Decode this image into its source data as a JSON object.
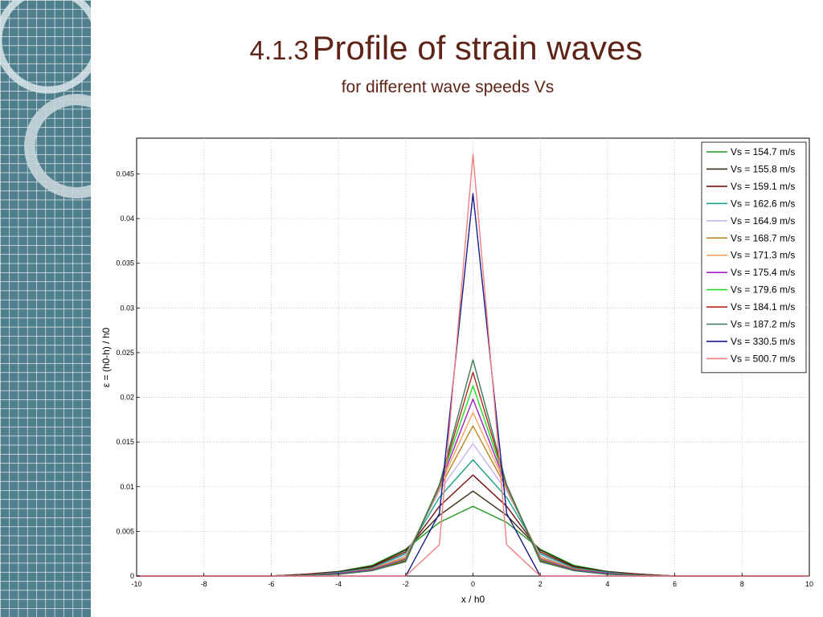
{
  "slide": {
    "title_prefix": "4.1.3",
    "title_main": "Profile of strain waves",
    "subtitle": "for different wave speeds Vs"
  },
  "theme": {
    "title_color": "#5e2418",
    "panel_color": "#4f7e8c",
    "panel_grid_color": "#ffffff"
  },
  "chart_data": {
    "type": "line",
    "xlabel": "x / h0",
    "ylabel": "ε = (h0-h) / h0",
    "xlim": [
      -10,
      10
    ],
    "ylim": [
      0,
      0.049
    ],
    "xticks": [
      -10,
      -8,
      -6,
      -4,
      -2,
      0,
      2,
      4,
      6,
      8,
      10
    ],
    "yticks": [
      0,
      0.005,
      0.01,
      0.015,
      0.02,
      0.025,
      0.03,
      0.035,
      0.04,
      0.045
    ],
    "ytick_labels": [
      "0",
      "0.005",
      "0.01",
      "0.015",
      "0.02",
      "0.025",
      "0.03",
      "0.035",
      "0.04",
      "0.045"
    ],
    "grid": true,
    "legend_position": "top-right",
    "x": [
      -10,
      -9,
      -8,
      -7,
      -6,
      -5,
      -4,
      -3,
      -2,
      -1,
      0,
      1,
      2,
      3,
      4,
      5,
      6,
      7,
      8,
      9,
      10
    ],
    "series": [
      {
        "name": "Vs = 154.7 m/s",
        "color": "#1f9a1f",
        "values": [
          0,
          0,
          0,
          0,
          0,
          0.0002,
          0.0005,
          0.0012,
          0.003,
          0.006,
          0.0078,
          0.006,
          0.003,
          0.0012,
          0.0005,
          0.0002,
          0,
          0,
          0,
          0,
          0
        ]
      },
      {
        "name": "Vs = 155.8 m/s",
        "color": "#3a2e12",
        "values": [
          0,
          0,
          0,
          0,
          0,
          0.0002,
          0.0005,
          0.0011,
          0.0029,
          0.0068,
          0.0095,
          0.0068,
          0.0029,
          0.0011,
          0.0005,
          0.0002,
          0,
          0,
          0,
          0,
          0
        ]
      },
      {
        "name": "Vs = 159.1 m/s",
        "color": "#7a1010",
        "values": [
          0,
          0,
          0,
          0,
          0,
          0.0002,
          0.0004,
          0.001,
          0.0027,
          0.0078,
          0.0113,
          0.0078,
          0.0027,
          0.001,
          0.0004,
          0.0002,
          0,
          0,
          0,
          0,
          0
        ]
      },
      {
        "name": "Vs = 162.6 m/s",
        "color": "#1aa38a",
        "values": [
          0,
          0,
          0,
          0,
          0,
          0.0001,
          0.0004,
          0.0009,
          0.0025,
          0.0088,
          0.013,
          0.0088,
          0.0025,
          0.0009,
          0.0004,
          0.0001,
          0,
          0,
          0,
          0,
          0
        ]
      },
      {
        "name": "Vs = 164.9 m/s",
        "color": "#c5b0f0",
        "values": [
          0,
          0,
          0,
          0,
          0,
          0.0001,
          0.0003,
          0.0008,
          0.0023,
          0.0095,
          0.0148,
          0.0095,
          0.0023,
          0.0008,
          0.0003,
          0.0001,
          0,
          0,
          0,
          0,
          0
        ]
      },
      {
        "name": "Vs = 168.7 m/s",
        "color": "#b8861b",
        "values": [
          0,
          0,
          0,
          0,
          0,
          0.0001,
          0.0003,
          0.0008,
          0.0021,
          0.0098,
          0.0168,
          0.0098,
          0.0021,
          0.0008,
          0.0003,
          0.0001,
          0,
          0,
          0,
          0,
          0
        ]
      },
      {
        "name": "Vs = 171.3 m/s",
        "color": "#f5a35a",
        "values": [
          0,
          0,
          0,
          0,
          0,
          0.0001,
          0.0003,
          0.0007,
          0.002,
          0.01,
          0.0183,
          0.01,
          0.002,
          0.0007,
          0.0003,
          0.0001,
          0,
          0,
          0,
          0,
          0
        ]
      },
      {
        "name": "Vs = 175.4 m/s",
        "color": "#a020c0",
        "values": [
          0,
          0,
          0,
          0,
          0,
          0.0001,
          0.0003,
          0.0007,
          0.0019,
          0.0101,
          0.0198,
          0.0101,
          0.0019,
          0.0007,
          0.0003,
          0.0001,
          0,
          0,
          0,
          0,
          0
        ]
      },
      {
        "name": "Vs = 179.6 m/s",
        "color": "#22dd22",
        "values": [
          0,
          0,
          0,
          0,
          0,
          0.0001,
          0.0002,
          0.0006,
          0.0018,
          0.0102,
          0.0213,
          0.0102,
          0.0018,
          0.0006,
          0.0002,
          0.0001,
          0,
          0,
          0,
          0,
          0
        ]
      },
      {
        "name": "Vs = 184.1 m/s",
        "color": "#b02a1a",
        "values": [
          0,
          0,
          0,
          0,
          0,
          0.0001,
          0.0002,
          0.0006,
          0.0017,
          0.0102,
          0.0228,
          0.0102,
          0.0017,
          0.0006,
          0.0002,
          0.0001,
          0,
          0,
          0,
          0,
          0
        ]
      },
      {
        "name": "Vs = 187.2 m/s",
        "color": "#3c7a5a",
        "values": [
          0,
          0,
          0,
          0,
          0,
          0.0001,
          0.0002,
          0.0006,
          0.0016,
          0.0102,
          0.0242,
          0.0102,
          0.0016,
          0.0006,
          0.0002,
          0.0001,
          0,
          0,
          0,
          0,
          0
        ]
      },
      {
        "name": "Vs  = 330.5 m/s",
        "color": "#1a1a8a",
        "values": [
          0,
          0,
          0,
          0,
          0,
          0,
          0,
          0,
          0,
          0.007,
          0.0428,
          0.007,
          0,
          0,
          0,
          0,
          0,
          0,
          0,
          0,
          0
        ]
      },
      {
        "name": "Vs = 500.7 m/s",
        "color": "#f08080",
        "values": [
          0,
          0,
          0,
          0,
          0,
          0,
          0,
          0,
          0,
          0.0035,
          0.0472,
          0.0035,
          0,
          0,
          0,
          0,
          0,
          0,
          0,
          0,
          0
        ]
      }
    ]
  }
}
